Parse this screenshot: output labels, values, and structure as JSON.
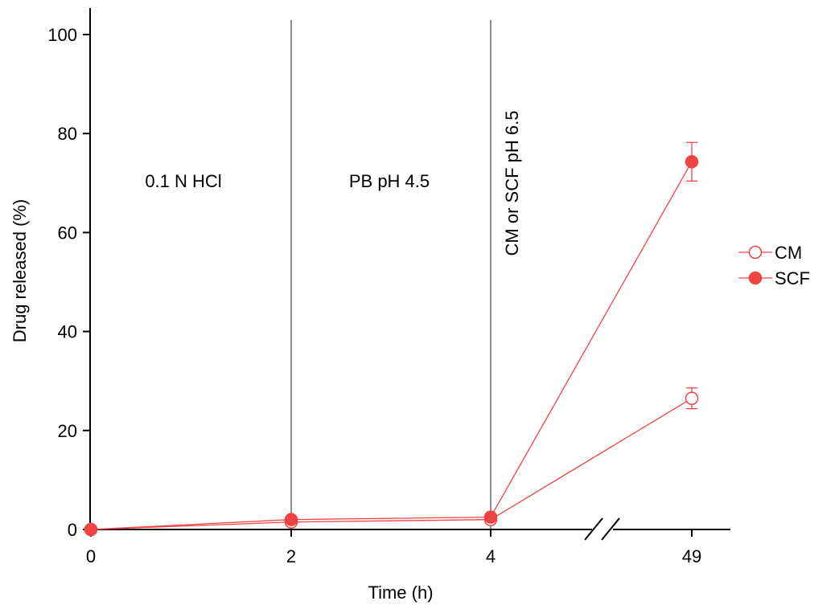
{
  "chart_data": {
    "type": "line",
    "title": "",
    "xlabel": "Time (h)",
    "ylabel": "Drug released (%)",
    "x_ticks": [
      "0",
      "2",
      "4",
      "49"
    ],
    "x_axis_break": "between 4 and 49",
    "ylim": [
      0,
      100
    ],
    "y_ticks": [
      0,
      20,
      40,
      60,
      80,
      100
    ],
    "grid": false,
    "legend_position": "right",
    "accent_color": "#ee4444",
    "phase_dividers_at_x": [
      2,
      4
    ],
    "phase_annotations": [
      "0.1 N HCl",
      "PB pH 4.5",
      "CM or SCF pH 6.5"
    ],
    "series": [
      {
        "name": "CM",
        "marker": "open-circle",
        "x": [
          0,
          2,
          4,
          49
        ],
        "y": [
          0,
          1.5,
          2.0,
          26.5
        ],
        "error": [
          0,
          0,
          0,
          2.1
        ]
      },
      {
        "name": "SCF",
        "marker": "filled-circle",
        "x": [
          0,
          2,
          4,
          49
        ],
        "y": [
          0,
          2.0,
          2.5,
          74.3
        ],
        "error": [
          0,
          0,
          0,
          3.9
        ]
      }
    ]
  }
}
